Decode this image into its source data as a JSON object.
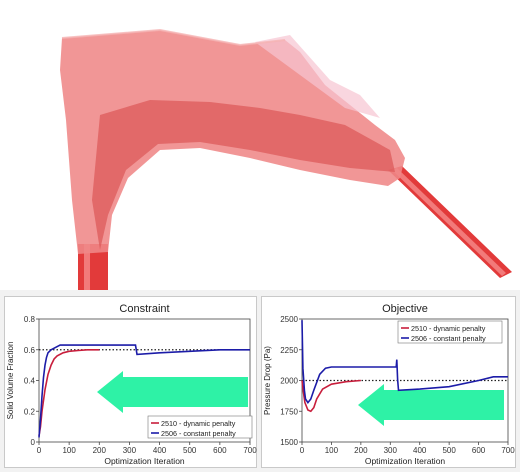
{
  "colors": {
    "series_dynamic": "#c81e3c",
    "series_constant": "#1c1ca8",
    "arrow": "#2ef2a6",
    "reference_line": "#222222",
    "pipe": "#e23a3a",
    "part_fill": "#ef8888"
  },
  "render": {
    "description_icon": "topology-optimized-duct-render"
  },
  "chart_data": [
    {
      "type": "line",
      "title": "Constraint",
      "xlabel": "Optimization Iteration",
      "ylabel": "Solid Volume Fraction",
      "xlim": [
        0,
        700
      ],
      "ylim": [
        0,
        0.8
      ],
      "xticks": [
        0,
        100,
        200,
        300,
        400,
        500,
        600,
        700
      ],
      "yticks": [
        0,
        0.2,
        0.4,
        0.6,
        0.8
      ],
      "ytick_labels": [
        "0",
        "0.2",
        "0.4",
        "0.6",
        "0.8"
      ],
      "reference_line": {
        "y": 0.6,
        "style": "dotted"
      },
      "legend_position": "bottom-right",
      "series": [
        {
          "name": "2510 - dynamic penalty",
          "color_key": "series_dynamic",
          "x": [
            0,
            5,
            10,
            20,
            30,
            40,
            50,
            60,
            80,
            100,
            130,
            160,
            200
          ],
          "y": [
            0.04,
            0.1,
            0.2,
            0.34,
            0.44,
            0.5,
            0.54,
            0.56,
            0.58,
            0.59,
            0.595,
            0.6,
            0.6
          ]
        },
        {
          "name": "2506 - constant penalty",
          "color_key": "series_constant",
          "x": [
            0,
            5,
            10,
            15,
            20,
            25,
            30,
            40,
            50,
            70,
            100,
            200,
            320,
            325,
            400,
            500,
            600,
            700
          ],
          "y": [
            0.03,
            0.15,
            0.3,
            0.42,
            0.5,
            0.55,
            0.58,
            0.6,
            0.61,
            0.63,
            0.63,
            0.63,
            0.63,
            0.57,
            0.58,
            0.59,
            0.6,
            0.6
          ]
        }
      ],
      "annotation": {
        "type": "arrow",
        "direction": "left",
        "color_key": "arrow"
      }
    },
    {
      "type": "line",
      "title": "Objective",
      "xlabel": "Optimization Iteration",
      "ylabel": "Pressure Drop (Pa)",
      "xlim": [
        0,
        700
      ],
      "ylim": [
        1500,
        2500
      ],
      "xticks": [
        0,
        100,
        200,
        300,
        400,
        500,
        600,
        700
      ],
      "yticks": [
        1500,
        1750,
        2000,
        2250,
        2500
      ],
      "ytick_labels": [
        "1500",
        "1750",
        "2000",
        "2250",
        "2500"
      ],
      "reference_line": {
        "y": 2000,
        "style": "dotted"
      },
      "legend_position": "top-right",
      "series": [
        {
          "name": "2510 - dynamic penalty",
          "color_key": "series_dynamic",
          "x": [
            0,
            5,
            10,
            20,
            30,
            40,
            50,
            70,
            100,
            150,
            200
          ],
          "y": [
            2000,
            1900,
            1820,
            1760,
            1750,
            1780,
            1850,
            1930,
            1970,
            1990,
            2000
          ]
        },
        {
          "name": "2506 - constant penalty",
          "color_key": "series_constant",
          "x": [
            0,
            3,
            8,
            12,
            20,
            30,
            40,
            60,
            80,
            100,
            150,
            200,
            320,
            322,
            325,
            328,
            400,
            500,
            600,
            650,
            700
          ],
          "y": [
            2490,
            2100,
            1920,
            1850,
            1820,
            1850,
            1920,
            2050,
            2100,
            2110,
            2110,
            2110,
            2110,
            2170,
            2010,
            1920,
            1930,
            1950,
            2000,
            2030,
            2030
          ]
        }
      ],
      "annotation": {
        "type": "arrow",
        "direction": "left",
        "color_key": "arrow"
      }
    }
  ]
}
